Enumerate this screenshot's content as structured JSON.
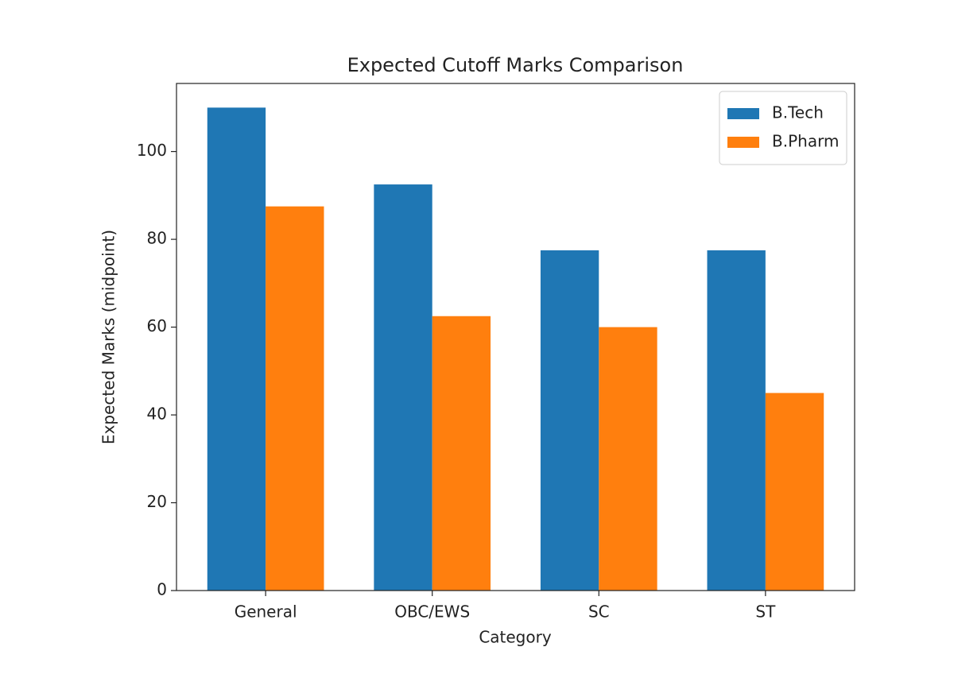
{
  "chart_data": {
    "type": "bar",
    "title": "Expected Cutoff Marks Comparison",
    "x_label": "Category",
    "y_label": "Expected Marks (midpoint)",
    "categories": [
      "General",
      "OBC/EWS",
      "SC",
      "ST"
    ],
    "series": [
      {
        "name": "B.Tech",
        "color": "#1f77b4",
        "values": [
          110,
          92.5,
          77.5,
          77.5
        ]
      },
      {
        "name": "B.Pharm",
        "color": "#ff7f0e",
        "values": [
          87.5,
          62.5,
          60,
          45
        ]
      }
    ],
    "ylim": [
      0,
      115.5
    ],
    "yticks": [
      0,
      20,
      40,
      60,
      80,
      100
    ],
    "legend": "upper-right"
  }
}
